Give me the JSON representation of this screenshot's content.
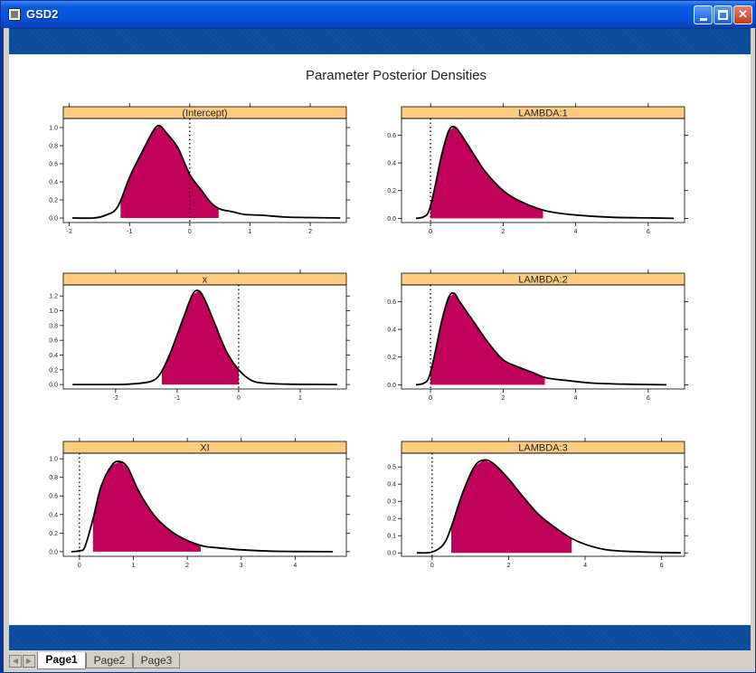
{
  "window": {
    "title": "GSD2"
  },
  "tabs": [
    {
      "label": "Page1",
      "active": true
    },
    {
      "label": "Page2",
      "active": false
    },
    {
      "label": "Page3",
      "active": false
    }
  ],
  "colors": {
    "strip": "#ffcc80",
    "fill": "#c0005a",
    "titlebar": "#0554e0"
  },
  "chart_data": {
    "type": "area",
    "title": "Parameter Posterior Densities",
    "panels": [
      {
        "name": "(Intercept)",
        "xlim": [
          -2.1,
          2.6
        ],
        "ylim": [
          -0.05,
          1.1
        ],
        "xticks": [
          -2,
          -1,
          0,
          1,
          2
        ],
        "yticks": [
          0.0,
          0.2,
          0.4,
          0.6,
          0.8,
          1.0
        ],
        "ref_line": 0,
        "shade": [
          -1.15,
          0.48
        ],
        "curve": [
          [
            -1.95,
            0.0
          ],
          [
            -1.6,
            0.0
          ],
          [
            -1.4,
            0.03
          ],
          [
            -1.2,
            0.12
          ],
          [
            -1.0,
            0.45
          ],
          [
            -0.8,
            0.72
          ],
          [
            -0.6,
            0.97
          ],
          [
            -0.5,
            1.02
          ],
          [
            -0.4,
            0.95
          ],
          [
            -0.2,
            0.78
          ],
          [
            0.0,
            0.48
          ],
          [
            0.2,
            0.3
          ],
          [
            0.35,
            0.17
          ],
          [
            0.5,
            0.1
          ],
          [
            0.7,
            0.07
          ],
          [
            0.9,
            0.04
          ],
          [
            1.2,
            0.03
          ],
          [
            1.6,
            0.01
          ],
          [
            2.0,
            0.005
          ],
          [
            2.5,
            0.0
          ]
        ]
      },
      {
        "name": "LAMBDA:1",
        "xlim": [
          -0.8,
          7.0
        ],
        "ylim": [
          -0.03,
          0.72
        ],
        "xticks": [
          0,
          2,
          4,
          6
        ],
        "yticks": [
          0.0,
          0.2,
          0.4,
          0.6
        ],
        "ref_line": 0,
        "shade": [
          0.0,
          3.1
        ],
        "curve": [
          [
            -0.4,
            0.0
          ],
          [
            -0.2,
            0.01
          ],
          [
            -0.05,
            0.05
          ],
          [
            0.1,
            0.2
          ],
          [
            0.3,
            0.45
          ],
          [
            0.5,
            0.63
          ],
          [
            0.65,
            0.66
          ],
          [
            0.8,
            0.62
          ],
          [
            1.1,
            0.5
          ],
          [
            1.5,
            0.34
          ],
          [
            2.0,
            0.2
          ],
          [
            2.5,
            0.12
          ],
          [
            3.1,
            0.06
          ],
          [
            3.6,
            0.035
          ],
          [
            4.2,
            0.02
          ],
          [
            5.0,
            0.008
          ],
          [
            6.0,
            0.003
          ],
          [
            6.7,
            0.0
          ]
        ]
      },
      {
        "name": "x",
        "xlim": [
          -2.85,
          1.75
        ],
        "ylim": [
          -0.06,
          1.35
        ],
        "xticks": [
          -2,
          -1,
          0,
          1
        ],
        "yticks": [
          0.0,
          0.2,
          0.4,
          0.6,
          0.8,
          1.0,
          1.2
        ],
        "ref_line": 0,
        "shade": [
          -1.25,
          0.0
        ],
        "curve": [
          [
            -2.7,
            0.0
          ],
          [
            -2.0,
            0.0
          ],
          [
            -1.7,
            0.01
          ],
          [
            -1.4,
            0.05
          ],
          [
            -1.25,
            0.18
          ],
          [
            -1.1,
            0.45
          ],
          [
            -0.9,
            0.9
          ],
          [
            -0.75,
            1.22
          ],
          [
            -0.65,
            1.27
          ],
          [
            -0.55,
            1.15
          ],
          [
            -0.4,
            0.85
          ],
          [
            -0.2,
            0.45
          ],
          [
            0.0,
            0.2
          ],
          [
            0.2,
            0.06
          ],
          [
            0.4,
            0.02
          ],
          [
            0.8,
            0.005
          ],
          [
            1.6,
            0.0
          ]
        ]
      },
      {
        "name": "LAMBDA:2",
        "xlim": [
          -0.8,
          7.0
        ],
        "ylim": [
          -0.03,
          0.72
        ],
        "xticks": [
          0,
          2,
          4,
          6
        ],
        "yticks": [
          0.0,
          0.2,
          0.4,
          0.6
        ],
        "ref_line": 0,
        "shade": [
          0.0,
          3.15
        ],
        "curve": [
          [
            -0.4,
            0.0
          ],
          [
            -0.2,
            0.01
          ],
          [
            -0.05,
            0.05
          ],
          [
            0.1,
            0.2
          ],
          [
            0.3,
            0.45
          ],
          [
            0.5,
            0.63
          ],
          [
            0.65,
            0.66
          ],
          [
            0.8,
            0.6
          ],
          [
            1.2,
            0.45
          ],
          [
            1.6,
            0.3
          ],
          [
            2.0,
            0.18
          ],
          [
            2.4,
            0.13
          ],
          [
            2.8,
            0.09
          ],
          [
            3.2,
            0.05
          ],
          [
            3.8,
            0.03
          ],
          [
            4.5,
            0.012
          ],
          [
            5.5,
            0.004
          ],
          [
            6.5,
            0.0
          ]
        ]
      },
      {
        "name": "XI",
        "xlim": [
          -0.3,
          4.95
        ],
        "ylim": [
          -0.05,
          1.06
        ],
        "xticks": [
          0,
          1,
          2,
          3,
          4
        ],
        "yticks": [
          0.0,
          0.2,
          0.4,
          0.6,
          0.8,
          1.0
        ],
        "ref_line": 0,
        "shade": [
          0.25,
          2.25
        ],
        "curve": [
          [
            -0.15,
            0.0
          ],
          [
            0.0,
            0.01
          ],
          [
            0.1,
            0.05
          ],
          [
            0.25,
            0.35
          ],
          [
            0.4,
            0.7
          ],
          [
            0.6,
            0.93
          ],
          [
            0.75,
            0.97
          ],
          [
            0.9,
            0.9
          ],
          [
            1.1,
            0.65
          ],
          [
            1.4,
            0.38
          ],
          [
            1.7,
            0.22
          ],
          [
            2.0,
            0.12
          ],
          [
            2.3,
            0.06
          ],
          [
            2.6,
            0.04
          ],
          [
            3.0,
            0.02
          ],
          [
            3.5,
            0.006
          ],
          [
            4.0,
            0.002
          ],
          [
            4.7,
            0.0
          ]
        ]
      },
      {
        "name": "LAMBDA:3",
        "xlim": [
          -0.8,
          6.6
        ],
        "ylim": [
          -0.02,
          0.58
        ],
        "xticks": [
          0,
          2,
          4,
          6
        ],
        "yticks": [
          0.0,
          0.1,
          0.2,
          0.3,
          0.4,
          0.5
        ],
        "ref_line": 0,
        "shade": [
          0.5,
          3.65
        ],
        "curve": [
          [
            -0.4,
            0.0
          ],
          [
            0.0,
            0.005
          ],
          [
            0.3,
            0.05
          ],
          [
            0.5,
            0.15
          ],
          [
            0.8,
            0.35
          ],
          [
            1.1,
            0.5
          ],
          [
            1.35,
            0.54
          ],
          [
            1.6,
            0.52
          ],
          [
            2.0,
            0.43
          ],
          [
            2.4,
            0.32
          ],
          [
            2.8,
            0.22
          ],
          [
            3.2,
            0.15
          ],
          [
            3.6,
            0.09
          ],
          [
            4.0,
            0.05
          ],
          [
            4.5,
            0.02
          ],
          [
            5.0,
            0.01
          ],
          [
            5.8,
            0.003
          ],
          [
            6.5,
            0.0
          ]
        ]
      }
    ]
  }
}
